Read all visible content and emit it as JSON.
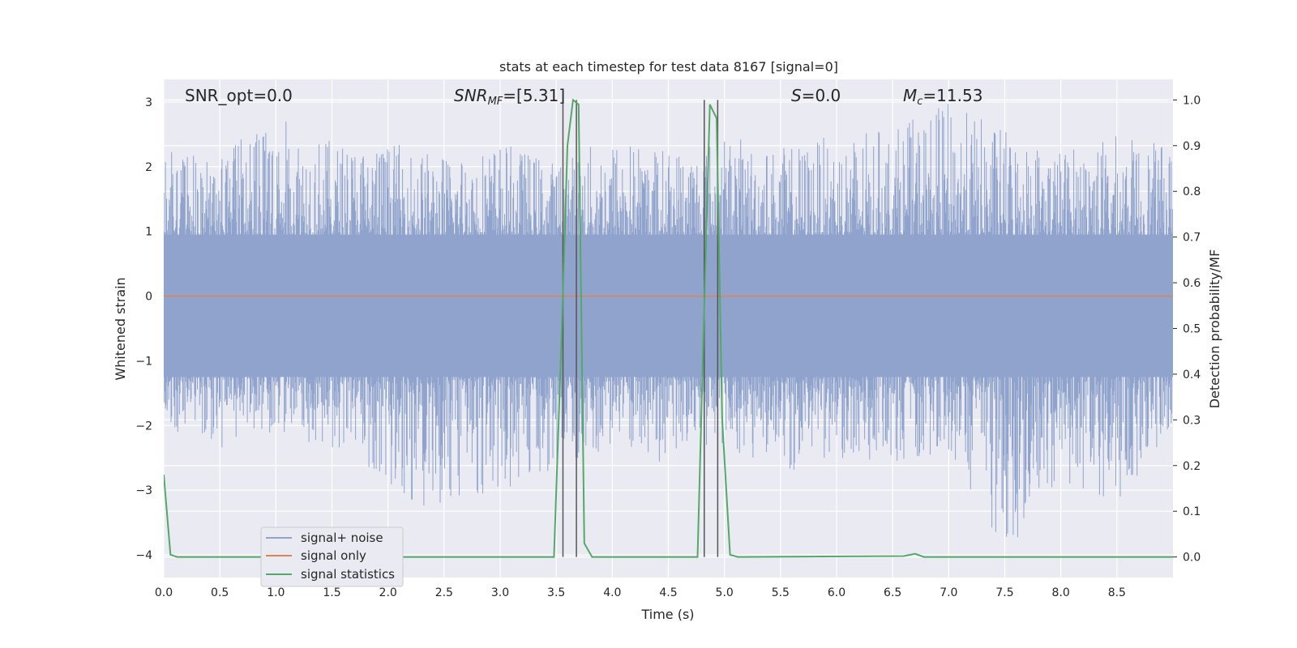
{
  "chart_data": {
    "type": "line",
    "title": "stats at each timestep for test data 8167 [signal=0]",
    "xlabel": "Time (s)",
    "ylabel_left": "Whitened strain",
    "ylabel_right": "Detection probability/MF",
    "xlim": [
      0,
      9.0
    ],
    "ylim_left": [
      -4.35,
      3.35
    ],
    "ylim_right": [
      -0.045,
      1.045
    ],
    "x_ticks": [
      "0.0",
      "0.5",
      "1.0",
      "1.5",
      "2.0",
      "2.5",
      "3.0",
      "3.5",
      "4.0",
      "4.5",
      "5.0",
      "5.5",
      "6.0",
      "6.5",
      "7.0",
      "7.5",
      "8.0",
      "8.5"
    ],
    "y_ticks_left": [
      "3",
      "2",
      "1",
      "0",
      "−1",
      "−2",
      "−3",
      "−4"
    ],
    "y_ticks_right": [
      "1.0",
      "0.9",
      "0.8",
      "0.7",
      "0.6",
      "0.5",
      "0.4",
      "0.3",
      "0.2",
      "0.1",
      "0.0"
    ],
    "grid": true,
    "legend_position": "lower-left",
    "annotations": {
      "snr_opt": "SNR_opt=0.0",
      "snr_mf_main": "SNR",
      "snr_mf_sub": "MF",
      "snr_mf_value": "=[5.31]",
      "s_main": "S",
      "s_value": "=0.0",
      "mc_main": "M",
      "mc_sub": "c",
      "mc_value": "=11.53"
    },
    "series": [
      {
        "name": "signal+ noise",
        "color": "#8fa3cc",
        "axis": "left",
        "description_only": false,
        "envelope_x": [
          0.0,
          0.5,
          1.0,
          1.5,
          2.0,
          2.5,
          3.0,
          3.5,
          4.0,
          4.5,
          5.0,
          5.5,
          6.0,
          6.5,
          7.0,
          7.5,
          8.0,
          8.5,
          9.0
        ],
        "envelope_max": [
          2.3,
          2.2,
          2.8,
          2.4,
          2.4,
          2.2,
          2.4,
          2.1,
          2.5,
          2.3,
          2.5,
          2.3,
          2.5,
          2.6,
          3.0,
          2.6,
          2.3,
          2.5,
          2.3
        ],
        "envelope_min": [
          -2.0,
          -2.4,
          -2.1,
          -2.4,
          -2.9,
          -3.5,
          -3.0,
          -2.7,
          -2.4,
          -2.6,
          -2.3,
          -2.8,
          -2.5,
          -2.6,
          -2.4,
          -4.0,
          -2.9,
          -3.2,
          -2.1
        ]
      },
      {
        "name": "signal only",
        "color": "#dd8452",
        "axis": "left",
        "x": [
          0.0,
          9.0
        ],
        "y": [
          0.0,
          0.0
        ]
      },
      {
        "name": "signal statistics",
        "color": "#55a868",
        "axis": "right",
        "x": [
          0.0,
          0.06,
          0.12,
          3.48,
          3.55,
          3.6,
          3.65,
          3.7,
          3.75,
          3.82,
          4.7,
          4.76,
          4.82,
          4.87,
          4.93,
          4.98,
          5.05,
          5.12,
          6.6,
          6.7,
          6.78,
          9.0
        ],
        "y": [
          0.18,
          0.005,
          0.0,
          0.0,
          0.5,
          0.9,
          1.0,
          0.99,
          0.03,
          0.0,
          0.0,
          0.0,
          0.55,
          0.99,
          0.96,
          0.3,
          0.005,
          0.0,
          0.002,
          0.007,
          0.0,
          0.0
        ]
      }
    ],
    "vertical_markers_x": [
      3.56,
      3.68,
      4.82,
      4.94
    ],
    "vertical_markers_color": "#555555"
  }
}
